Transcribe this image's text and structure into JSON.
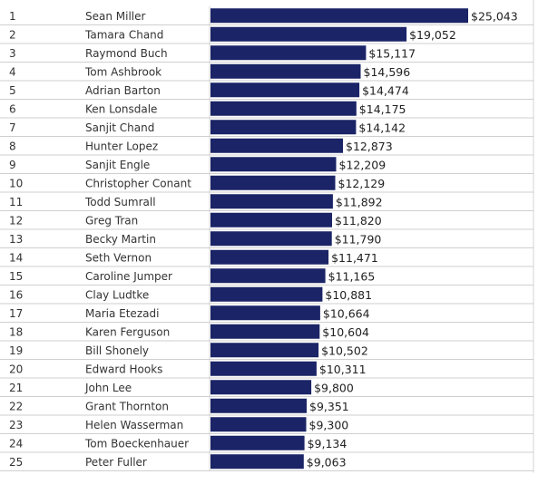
{
  "chart_data": {
    "type": "bar",
    "orientation": "horizontal",
    "title": "",
    "xlabel": "",
    "ylabel": "",
    "value_format": "currency_usd",
    "bar_color": "#1a2466",
    "rows": [
      {
        "rank": "1",
        "name": "Sean Miller",
        "value": 25043,
        "label": "$25,043"
      },
      {
        "rank": "2",
        "name": "Tamara Chand",
        "value": 19052,
        "label": "$19,052"
      },
      {
        "rank": "3",
        "name": "Raymond Buch",
        "value": 15117,
        "label": "$15,117"
      },
      {
        "rank": "4",
        "name": "Tom Ashbrook",
        "value": 14596,
        "label": "$14,596"
      },
      {
        "rank": "5",
        "name": "Adrian Barton",
        "value": 14474,
        "label": "$14,474"
      },
      {
        "rank": "6",
        "name": "Ken Lonsdale",
        "value": 14175,
        "label": "$14,175"
      },
      {
        "rank": "7",
        "name": "Sanjit Chand",
        "value": 14142,
        "label": "$14,142"
      },
      {
        "rank": "8",
        "name": "Hunter Lopez",
        "value": 12873,
        "label": "$12,873"
      },
      {
        "rank": "9",
        "name": "Sanjit Engle",
        "value": 12209,
        "label": "$12,209"
      },
      {
        "rank": "10",
        "name": "Christopher Conant",
        "value": 12129,
        "label": "$12,129"
      },
      {
        "rank": "11",
        "name": "Todd Sumrall",
        "value": 11892,
        "label": "$11,892"
      },
      {
        "rank": "12",
        "name": "Greg Tran",
        "value": 11820,
        "label": "$11,820"
      },
      {
        "rank": "13",
        "name": "Becky Martin",
        "value": 11790,
        "label": "$11,790"
      },
      {
        "rank": "14",
        "name": "Seth Vernon",
        "value": 11471,
        "label": "$11,471"
      },
      {
        "rank": "15",
        "name": "Caroline Jumper",
        "value": 11165,
        "label": "$11,165"
      },
      {
        "rank": "16",
        "name": "Clay Ludtke",
        "value": 10881,
        "label": "$10,881"
      },
      {
        "rank": "17",
        "name": "Maria Etezadi",
        "value": 10664,
        "label": "$10,664"
      },
      {
        "rank": "18",
        "name": "Karen Ferguson",
        "value": 10604,
        "label": "$10,604"
      },
      {
        "rank": "19",
        "name": "Bill Shonely",
        "value": 10502,
        "label": "$10,502"
      },
      {
        "rank": "20",
        "name": "Edward Hooks",
        "value": 10311,
        "label": "$10,311"
      },
      {
        "rank": "21",
        "name": "John Lee",
        "value": 9800,
        "label": "$9,800"
      },
      {
        "rank": "22",
        "name": "Grant Thornton",
        "value": 9351,
        "label": "$9,351"
      },
      {
        "rank": "23",
        "name": "Helen Wasserman",
        "value": 9300,
        "label": "$9,300"
      },
      {
        "rank": "24",
        "name": "Tom Boeckenhauer",
        "value": 9134,
        "label": "$9,134"
      },
      {
        "rank": "25",
        "name": "Peter Fuller",
        "value": 9063,
        "label": "$9,063"
      }
    ]
  }
}
